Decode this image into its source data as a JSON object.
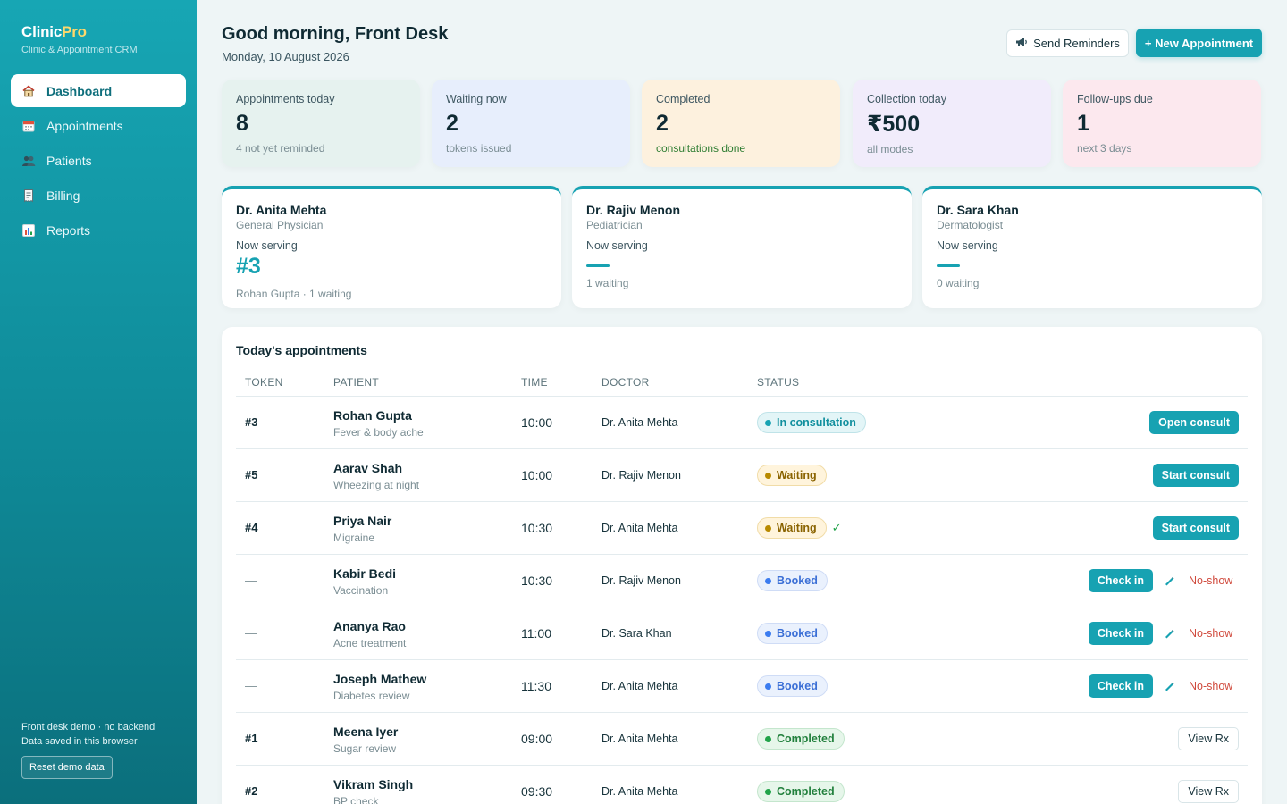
{
  "app": {
    "name_main": "Clinic",
    "name_accent": "Pro",
    "subtitle": "Clinic & Appointment CRM"
  },
  "sidebar": {
    "items": [
      {
        "label": "Dashboard",
        "icon": "home-icon"
      },
      {
        "label": "Appointments",
        "icon": "calendar-icon"
      },
      {
        "label": "Patients",
        "icon": "users-icon"
      },
      {
        "label": "Billing",
        "icon": "receipt-icon"
      },
      {
        "label": "Reports",
        "icon": "bar-chart-icon"
      }
    ],
    "footer_line1": "Front desk demo · no backend",
    "footer_line2": "Data saved in this browser",
    "reset_label": "Reset demo data"
  },
  "header": {
    "greeting": "Good morning, Front Desk",
    "date": "Monday, 10 August 2026",
    "reminders_label": "Send Reminders",
    "new_label": "+ New Appointment"
  },
  "stats": [
    {
      "label": "Appointments today",
      "value": "8",
      "sub": "4 not yet reminded",
      "bg": "#e6f2ef"
    },
    {
      "label": "Waiting now",
      "value": "2",
      "sub": "tokens issued",
      "bg": "#e7eefc"
    },
    {
      "label": "Completed",
      "value": "2",
      "sub": "consultations done",
      "bg": "#fdf1de"
    },
    {
      "label": "Collection today",
      "value": "₹500",
      "sub": "all modes",
      "bg": "#f1ecfb"
    },
    {
      "label": "Follow-ups due",
      "value": "1",
      "sub": "next 3 days",
      "bg": "#fce8ee"
    }
  ],
  "doctors": [
    {
      "name": "Dr. Anita Mehta",
      "specialty": "General Physician",
      "now_label": "Now serving",
      "token": "#3",
      "waiting": "Rohan Gupta · 1 waiting"
    },
    {
      "name": "Dr. Rajiv Menon",
      "specialty": "Pediatrician",
      "now_label": "Now serving",
      "token": "",
      "waiting": "1 waiting"
    },
    {
      "name": "Dr. Sara Khan",
      "specialty": "Dermatologist",
      "now_label": "Now serving",
      "token": "",
      "waiting": "0 waiting"
    }
  ],
  "appointments": {
    "title": "Today's appointments",
    "columns": [
      "TOKEN",
      "PATIENT",
      "TIME",
      "DOCTOR",
      "STATUS"
    ],
    "rows": [
      {
        "token": "#3",
        "name": "Rohan Gupta",
        "note": "Fever & body ache",
        "time": "10:00",
        "doctor": "Dr. Anita Mehta",
        "status": "In consultation",
        "action": "Open consult"
      },
      {
        "token": "#5",
        "name": "Aarav Shah",
        "note": "Wheezing at night",
        "time": "10:00",
        "doctor": "Dr. Rajiv Menon",
        "status": "Waiting",
        "action": "Start consult"
      },
      {
        "token": "#4",
        "name": "Priya Nair",
        "note": "Migraine",
        "time": "10:30",
        "doctor": "Dr. Anita Mehta",
        "status": "Waiting",
        "status_extra": "✓",
        "action": "Start consult"
      },
      {
        "token": "—",
        "name": "Kabir Bedi",
        "note": "Vaccination",
        "time": "10:30",
        "doctor": "Dr. Rajiv Menon",
        "status": "Booked",
        "action": "Check in",
        "secondary": "No-show"
      },
      {
        "token": "—",
        "name": "Ananya Rao",
        "note": "Acne treatment",
        "time": "11:00",
        "doctor": "Dr. Sara Khan",
        "status": "Booked",
        "action": "Check in",
        "secondary": "No-show"
      },
      {
        "token": "—",
        "name": "Joseph Mathew",
        "note": "Diabetes review",
        "time": "11:30",
        "doctor": "Dr. Anita Mehta",
        "status": "Booked",
        "action": "Check in",
        "secondary": "No-show"
      },
      {
        "token": "#1",
        "name": "Meena Iyer",
        "note": "Sugar review",
        "time": "09:00",
        "doctor": "Dr. Anita Mehta",
        "status": "Completed",
        "action": "View Rx"
      },
      {
        "token": "#2",
        "name": "Vikram Singh",
        "note": "BP check",
        "time": "09:30",
        "doctor": "Dr. Anita Mehta",
        "status": "Completed",
        "action": "View Rx"
      }
    ]
  },
  "colors": {
    "accent": "#17a2b2",
    "brand_accent": "#ffd86b",
    "noshow": "#d04a3d"
  }
}
